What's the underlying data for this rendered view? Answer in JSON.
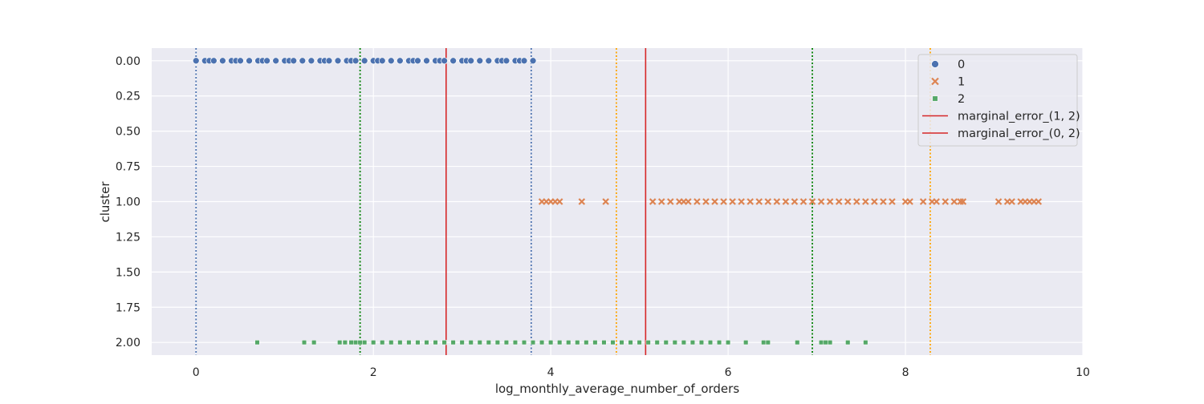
{
  "chart_data": {
    "type": "scatter",
    "title": "",
    "xlabel": "log_monthly_average_number_of_orders",
    "ylabel": "cluster",
    "xlim": [
      -0.5,
      10
    ],
    "ylim": [
      2.09,
      -0.09
    ],
    "y_inverted": true,
    "xticks": [
      0,
      2,
      4,
      6,
      8,
      10
    ],
    "yticks": [
      0.0,
      0.25,
      0.5,
      0.75,
      1.0,
      1.25,
      1.5,
      1.75,
      2.0
    ],
    "xtick_labels": [
      "0",
      "2",
      "4",
      "6",
      "8",
      "10"
    ],
    "ytick_labels": [
      "0.00",
      "0.25",
      "0.50",
      "0.75",
      "1.00",
      "1.25",
      "1.50",
      "1.75",
      "2.00"
    ],
    "grid": true,
    "legend_position": "top-right",
    "colors": {
      "background": "#eaeaf2",
      "grid": "#ffffff",
      "cluster_0": "#4c72b0",
      "cluster_1": "#dd8452",
      "cluster_2": "#55a868",
      "marginal_error": "#d62728",
      "bound_0": "#4c72b0",
      "bound_1": "#ffa500",
      "bound_2": "#008000"
    },
    "series": [
      {
        "name": "0",
        "marker": "circle",
        "y": 0,
        "x_range": [
          0.0,
          3.8
        ],
        "x": [
          0.0,
          0.1,
          0.15,
          0.2,
          0.3,
          0.4,
          0.45,
          0.5,
          0.6,
          0.7,
          0.75,
          0.8,
          0.9,
          1.0,
          1.05,
          1.1,
          1.2,
          1.3,
          1.4,
          1.45,
          1.5,
          1.6,
          1.7,
          1.75,
          1.8,
          1.9,
          2.0,
          2.05,
          2.1,
          2.2,
          2.3,
          2.4,
          2.45,
          2.5,
          2.6,
          2.7,
          2.75,
          2.8,
          2.9,
          3.0,
          3.05,
          3.1,
          3.2,
          3.3,
          3.4,
          3.45,
          3.5,
          3.6,
          3.65,
          3.7,
          3.8
        ]
      },
      {
        "name": "1",
        "marker": "x",
        "y": 1,
        "x_range": [
          3.9,
          9.5
        ],
        "x": [
          3.9,
          3.95,
          4.0,
          4.05,
          4.1,
          4.35,
          4.62,
          5.15,
          5.25,
          5.35,
          5.45,
          5.5,
          5.55,
          5.65,
          5.75,
          5.85,
          5.95,
          6.05,
          6.15,
          6.25,
          6.35,
          6.45,
          6.55,
          6.65,
          6.75,
          6.85,
          6.95,
          7.05,
          7.15,
          7.25,
          7.35,
          7.45,
          7.55,
          7.65,
          7.75,
          7.85,
          8.0,
          8.05,
          8.2,
          8.3,
          8.35,
          8.45,
          8.55,
          8.62,
          8.65,
          9.05,
          9.15,
          9.2,
          9.3,
          9.35,
          9.4,
          9.45,
          9.5
        ]
      },
      {
        "name": "2",
        "marker": "square",
        "y": 2,
        "x_range": [
          0.69,
          7.55
        ],
        "x": [
          0.69,
          1.22,
          1.33,
          1.62,
          1.68,
          1.75,
          1.8,
          1.85,
          1.9,
          2.0,
          2.1,
          2.2,
          2.3,
          2.4,
          2.5,
          2.6,
          2.7,
          2.8,
          2.9,
          3.0,
          3.1,
          3.2,
          3.3,
          3.4,
          3.5,
          3.6,
          3.7,
          3.8,
          3.9,
          4.0,
          4.1,
          4.2,
          4.3,
          4.4,
          4.5,
          4.6,
          4.7,
          4.8,
          4.9,
          5.0,
          5.1,
          5.2,
          5.3,
          5.4,
          5.5,
          5.6,
          5.7,
          5.8,
          5.9,
          6.0,
          6.2,
          6.4,
          6.45,
          6.78,
          7.05,
          7.1,
          7.15,
          7.35,
          7.55
        ]
      }
    ],
    "reference_lines": [
      {
        "name": "marginal_error_(1, 2)",
        "x": 2.82,
        "style": "solid",
        "color_key": "marginal_error",
        "in_legend": true
      },
      {
        "name": "marginal_error_(0, 2)",
        "x": 5.07,
        "style": "solid",
        "color_key": "marginal_error",
        "in_legend": true
      },
      {
        "x": 0.0,
        "style": "dotted",
        "color_key": "bound_0",
        "in_legend": false
      },
      {
        "x": 3.78,
        "style": "dotted",
        "color_key": "bound_0",
        "in_legend": false
      },
      {
        "x": 4.74,
        "style": "dotted",
        "color_key": "bound_1",
        "in_legend": false
      },
      {
        "x": 8.28,
        "style": "dotted",
        "color_key": "bound_1",
        "in_legend": false
      },
      {
        "x": 1.85,
        "style": "dotted",
        "color_key": "bound_2",
        "in_legend": false
      },
      {
        "x": 6.95,
        "style": "dotted",
        "color_key": "bound_2",
        "in_legend": false
      }
    ],
    "legend": [
      {
        "label": "0",
        "kind": "circle",
        "color_key": "cluster_0"
      },
      {
        "label": "1",
        "kind": "x",
        "color_key": "cluster_1"
      },
      {
        "label": "2",
        "kind": "square",
        "color_key": "cluster_2"
      },
      {
        "label": "marginal_error_(1, 2)",
        "kind": "line",
        "color_key": "marginal_error"
      },
      {
        "label": "marginal_error_(0, 2)",
        "kind": "line",
        "color_key": "marginal_error"
      }
    ]
  }
}
